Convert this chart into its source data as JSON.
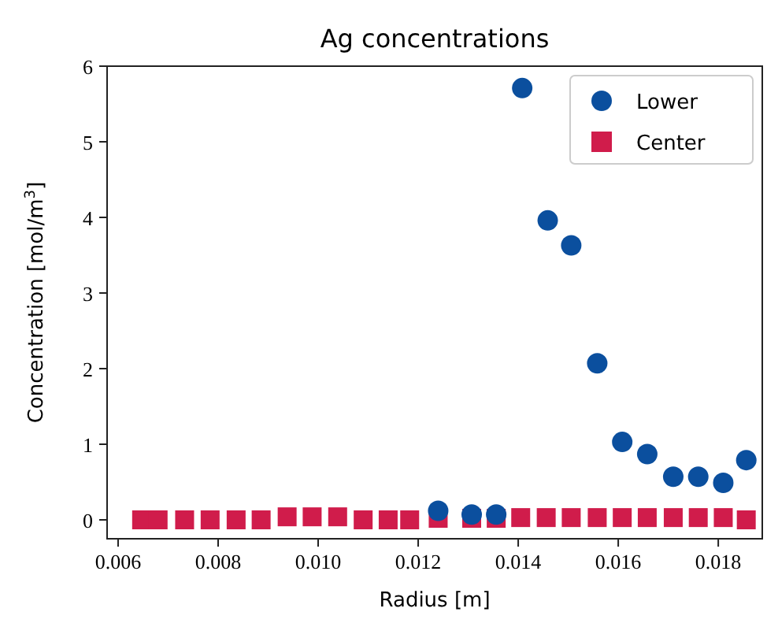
{
  "chart_data": {
    "type": "scatter",
    "title": "Ag concentrations",
    "xlabel": "Radius [m]",
    "ylabel": "Concentration [mol/m$^{3}$]",
    "xlim": [
      0.00578,
      0.01888
    ],
    "xticks": [
      {
        "value": 0.006,
        "label": "0.006"
      },
      {
        "value": 0.008,
        "label": "0.008"
      },
      {
        "value": 0.01,
        "label": "0.010"
      },
      {
        "value": 0.012,
        "label": "0.012"
      },
      {
        "value": 0.014,
        "label": "0.014"
      },
      {
        "value": 0.016,
        "label": "0.016"
      },
      {
        "value": 0.018,
        "label": "0.018"
      }
    ],
    "ylim": [
      -0.25,
      6
    ],
    "yticks": [
      0,
      1,
      2,
      3,
      4,
      5,
      6
    ],
    "legend": "top right",
    "grid": false,
    "series": [
      {
        "name": "Lower",
        "color": "#0b4f9e",
        "marker": "circle",
        "x": [
          0.0124,
          0.01307,
          0.01356,
          0.01408,
          0.01459,
          0.01506,
          0.01558,
          0.01608,
          0.01658,
          0.0171,
          0.0176,
          0.0181,
          0.01856
        ],
        "values": [
          0.12,
          0.07,
          0.07,
          5.71,
          3.96,
          3.63,
          2.07,
          1.03,
          0.87,
          0.57,
          0.57,
          0.49,
          0.79
        ]
      },
      {
        "name": "Center",
        "color": "#d01c4b",
        "marker": "square",
        "x": [
          0.00647,
          0.0068,
          0.00733,
          0.00784,
          0.00836,
          0.00886,
          0.00938,
          0.00988,
          0.01039,
          0.0109,
          0.0114,
          0.01183,
          0.0124,
          0.01307,
          0.01356,
          0.01405,
          0.01456,
          0.01506,
          0.01558,
          0.01608,
          0.01658,
          0.0171,
          0.0176,
          0.0181,
          0.01856
        ],
        "values": [
          0,
          0,
          0,
          0,
          0,
          0,
          0.04,
          0.04,
          0.04,
          0,
          0,
          0,
          0.02,
          0.02,
          0.02,
          0.03,
          0.03,
          0.03,
          0.03,
          0.03,
          0.03,
          0.03,
          0.03,
          0.03,
          0
        ]
      }
    ]
  }
}
